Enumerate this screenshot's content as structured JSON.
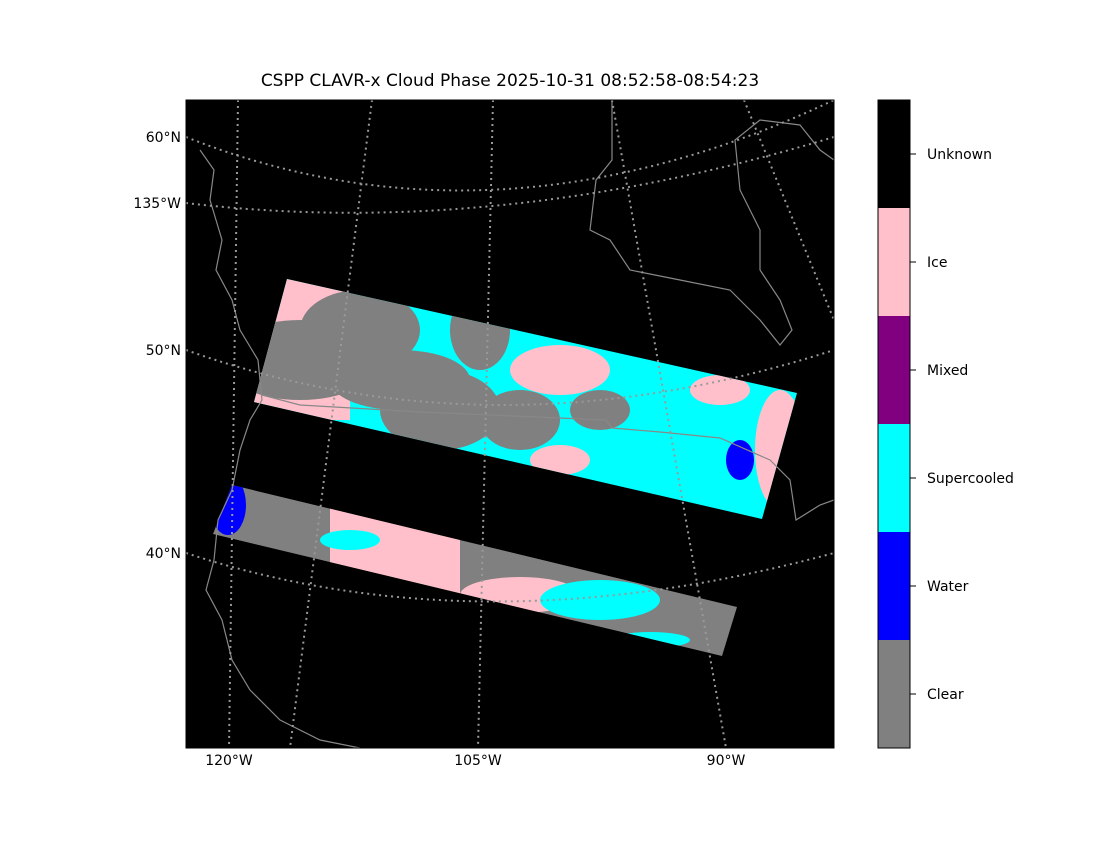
{
  "title": "CSPP CLAVR-x Cloud Phase 2025-10-31 08:52:58-08:54:23",
  "map": {
    "lat_labels": [
      "60°N",
      "135°W",
      "50°N",
      "40°N"
    ],
    "lon_labels": [
      "120°W",
      "105°W",
      "90°W"
    ]
  },
  "colorbar": {
    "categories": [
      "Clear",
      "Water",
      "Supercooled",
      "Mixed",
      "Ice",
      "Unknown"
    ],
    "colors": [
      "#808080",
      "#0000ff",
      "#00ffff",
      "#800080",
      "#ffc0cb",
      "#000000"
    ]
  }
}
